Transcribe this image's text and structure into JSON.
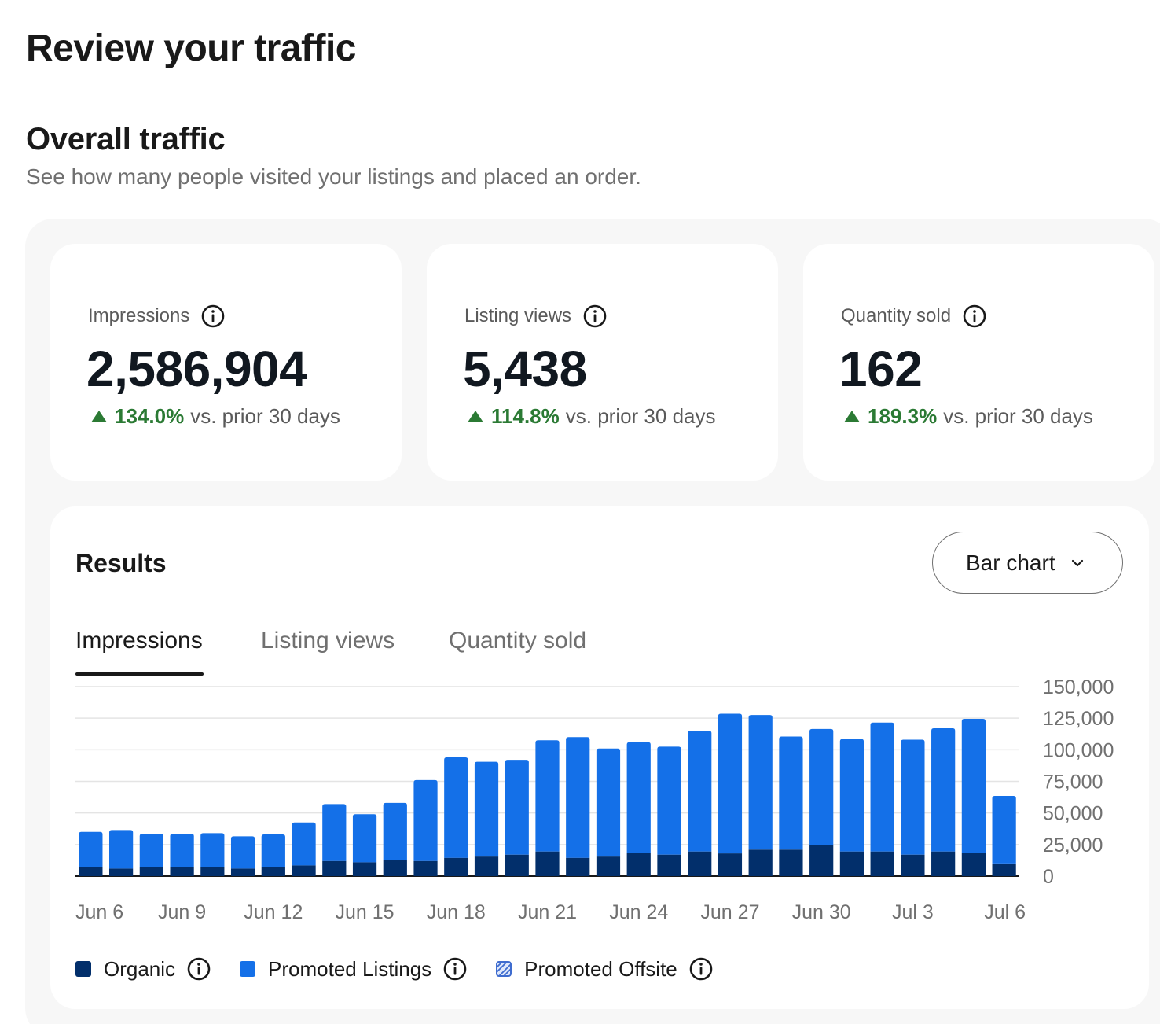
{
  "page": {
    "title": "Review your traffic",
    "section_title": "Overall traffic",
    "section_subtitle": "See how many people visited your listings and placed an order."
  },
  "kpis": [
    {
      "label": "Impressions",
      "value": "2,586,904",
      "change": "134.0%",
      "suffix": "vs. prior 30 days"
    },
    {
      "label": "Listing views",
      "value": "5,438",
      "change": "114.8%",
      "suffix": "vs. prior 30 days"
    },
    {
      "label": "Quantity sold",
      "value": "162",
      "change": "189.3%",
      "suffix": "vs. prior 30 days"
    }
  ],
  "results": {
    "title": "Results",
    "chart_type_label": "Bar chart",
    "tabs": [
      "Impressions",
      "Listing views",
      "Quantity sold"
    ],
    "active_tab": "Impressions"
  },
  "colors": {
    "organic": "#022f6b",
    "promoted_listings": "#1470e8",
    "promoted_offsite": "#3e6ccf",
    "positive": "#2b7a34",
    "gridline": "#e4e4e4"
  },
  "chart_data": {
    "type": "bar",
    "stacked": true,
    "categories": [
      "Jun 6",
      "Jun 7",
      "Jun 8",
      "Jun 9",
      "Jun 10",
      "Jun 11",
      "Jun 12",
      "Jun 13",
      "Jun 14",
      "Jun 15",
      "Jun 16",
      "Jun 17",
      "Jun 18",
      "Jun 19",
      "Jun 20",
      "Jun 21",
      "Jun 22",
      "Jun 23",
      "Jun 24",
      "Jun 25",
      "Jun 26",
      "Jun 27",
      "Jun 28",
      "Jun 29",
      "Jun 30",
      "Jul 1",
      "Jul 2",
      "Jul 3",
      "Jul 4",
      "Jul 5",
      "Jul 6"
    ],
    "x_tick_labels": [
      "Jun 6",
      "Jun 9",
      "Jun 12",
      "Jun 15",
      "Jun 18",
      "Jun 21",
      "Jun 24",
      "Jun 27",
      "Jun 30",
      "Jul 3",
      "Jul 6"
    ],
    "series": [
      {
        "name": "Organic",
        "values": [
          7000,
          6000,
          7000,
          7000,
          7000,
          6000,
          7000,
          8500,
          12000,
          11000,
          13000,
          12000,
          14500,
          15500,
          17000,
          19500,
          14500,
          15500,
          18500,
          17000,
          19500,
          18000,
          21000,
          21000,
          24500,
          19500,
          19500,
          17000,
          19500,
          18500,
          10000
        ]
      },
      {
        "name": "Promoted Listings",
        "values": [
          28000,
          30500,
          26500,
          26500,
          27000,
          25500,
          26000,
          34000,
          45000,
          38000,
          45000,
          64000,
          79500,
          75000,
          75000,
          88000,
          95500,
          85500,
          87500,
          85500,
          95500,
          110500,
          106500,
          89500,
          92000,
          89000,
          102000,
          91000,
          97500,
          106000,
          53500
        ]
      },
      {
        "name": "Promoted Offsite",
        "values": [
          0,
          0,
          0,
          0,
          0,
          0,
          0,
          0,
          0,
          0,
          0,
          0,
          0,
          0,
          0,
          0,
          0,
          0,
          0,
          0,
          0,
          0,
          0,
          0,
          0,
          0,
          0,
          0,
          0,
          0,
          0
        ]
      }
    ],
    "y_ticks": [
      "150,000",
      "125,000",
      "100,000",
      "75,000",
      "50,000",
      "25,000",
      "0"
    ],
    "ylim": [
      0,
      150000
    ],
    "grid": true,
    "legend": "bottom-left"
  }
}
